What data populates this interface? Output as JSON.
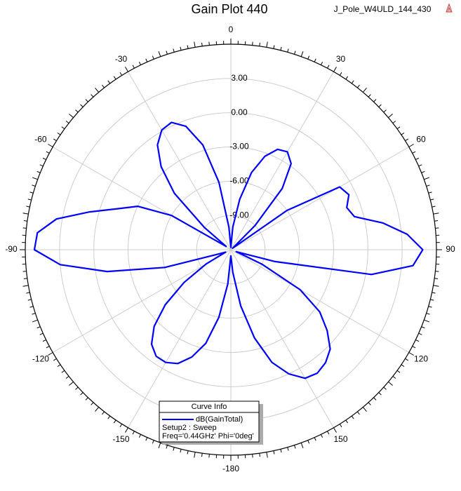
{
  "chart_data": {
    "type": "polar",
    "title": "Gain Plot 440",
    "design_name": "J_Pole_W4ULD_144_430",
    "theta_zero_location": "N",
    "theta_direction": -1,
    "thetaticks": [
      0,
      30,
      60,
      90,
      120,
      150,
      -180,
      -150,
      -120,
      -90,
      -60,
      -30
    ],
    "rlim": [
      -12,
      6
    ],
    "rticks": [
      {
        "value": 3,
        "label": "3.00"
      },
      {
        "value": 0,
        "label": "0.00"
      },
      {
        "value": -3,
        "label": "-3.00"
      },
      {
        "value": -6,
        "label": "-6.00"
      },
      {
        "value": -9,
        "label": "-9.00"
      }
    ],
    "grid": true,
    "legend_title": "Curve Info",
    "legend_notes": [
      "Setup2 : Sweep",
      "Freq='0.44GHz' Phi='0deg'"
    ],
    "theta": [
      -180,
      -175,
      -170,
      -165,
      -160,
      -155,
      -150,
      -145,
      -140,
      -135,
      -130,
      -125,
      -120,
      -115,
      -110,
      -105,
      -100,
      -95,
      -90,
      -85,
      -80,
      -75,
      -70,
      -65,
      -60,
      -55,
      -50,
      -45,
      -40,
      -35,
      -30,
      -25,
      -20,
      -15,
      -10,
      -5,
      0,
      5,
      10,
      15,
      20,
      25,
      30,
      35,
      40,
      45,
      50,
      55,
      60,
      65,
      70,
      75,
      80,
      85,
      90,
      95,
      100,
      105,
      110,
      115,
      120,
      125,
      130,
      135,
      140,
      145,
      150,
      155,
      160,
      165,
      170,
      175,
      180
    ],
    "series": [
      {
        "name": "dB(GainTotal)",
        "color": "#0000ff",
        "values": [
          -11.5,
          -9,
          -6,
          -3.5,
          -2,
          -1,
          -0.6,
          -0.6,
          -1.2,
          -2.5,
          -4.5,
          -7,
          -9.5,
          -11.5,
          -11,
          -6,
          -1,
          3,
          5.2,
          5,
          3.5,
          0.8,
          -1.5,
          -3,
          -6,
          -11.5,
          -9,
          -5,
          -2.5,
          -0.8,
          0.1,
          0.3,
          -0.5,
          -2.5,
          -6,
          -10,
          -11.8,
          -10,
          -7.5,
          -5,
          -3.3,
          -2.3,
          -2.1,
          -2.8,
          -5,
          -9,
          -11.8,
          -6,
          -1,
          -0.6,
          -1.2,
          -0.8,
          1.5,
          3.5,
          4.8,
          4,
          0.5,
          -8,
          -11.5,
          -9,
          -5,
          -2.5,
          -1,
          0.3,
          0.9,
          1.2,
          1,
          0,
          -1.5,
          -4,
          -7,
          -10,
          -11.5
        ]
      }
    ]
  }
}
